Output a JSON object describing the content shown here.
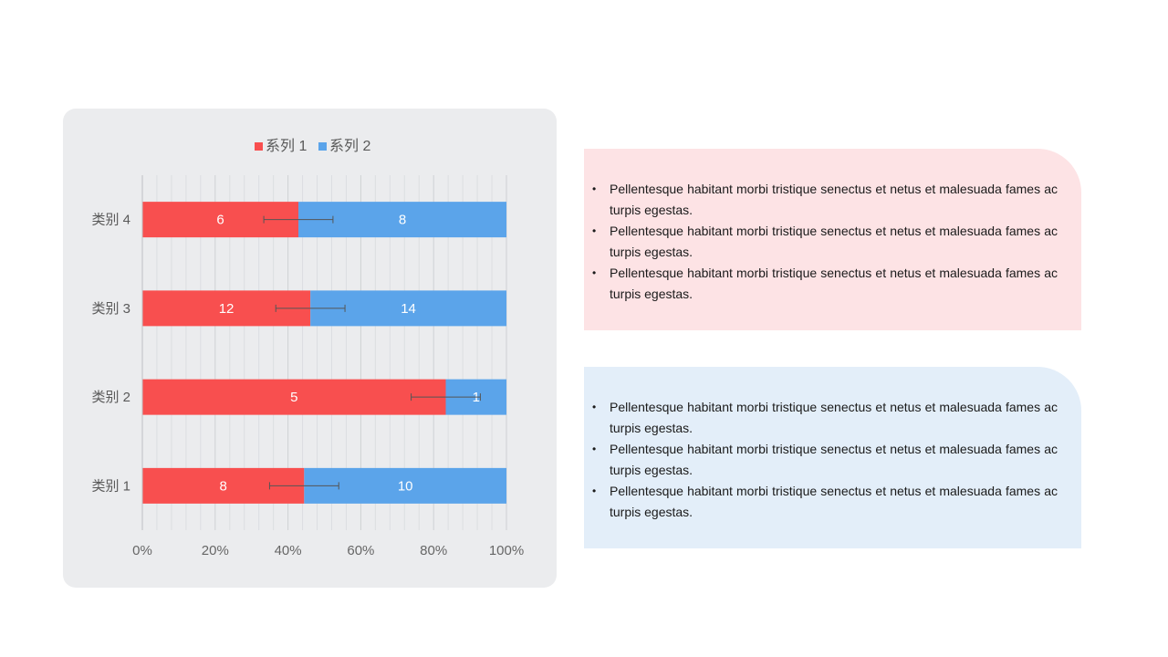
{
  "colors": {
    "series1": "#f84f4f",
    "series2": "#5ba4ea",
    "panel_bg": "#ebecee",
    "pink_box": "#fde3e5",
    "blue_box": "#e3eef9"
  },
  "chart_data": {
    "type": "bar",
    "orientation": "horizontal",
    "stacked": "percent",
    "categories": [
      "类别 4",
      "类别 3",
      "类别 2",
      "类别 1"
    ],
    "series": [
      {
        "name": "系列 1",
        "values": [
          6,
          12,
          5,
          8
        ]
      },
      {
        "name": "系列 2",
        "values": [
          8,
          14,
          1,
          10
        ]
      }
    ],
    "error_bars": true,
    "xticks": [
      "0%",
      "20%",
      "40%",
      "60%",
      "80%",
      "100%"
    ],
    "xlim": [
      0,
      1
    ],
    "grid": true,
    "legend": "top"
  },
  "pink_box": {
    "items": [
      "Pellentesque habitant morbi tristique senectus et netus et malesuada fames ac turpis egestas.",
      "Pellentesque habitant morbi tristique senectus et netus et malesuada fames ac turpis egestas.",
      "Pellentesque habitant morbi tristique senectus et netus et malesuada fames ac turpis egestas."
    ]
  },
  "blue_box": {
    "items": [
      "Pellentesque habitant morbi tristique senectus et netus et malesuada fames ac turpis egestas.",
      "Pellentesque habitant morbi tristique senectus et netus et malesuada fames ac turpis egestas.",
      "Pellentesque habitant morbi tristique senectus et netus et malesuada fames ac turpis egestas."
    ]
  }
}
